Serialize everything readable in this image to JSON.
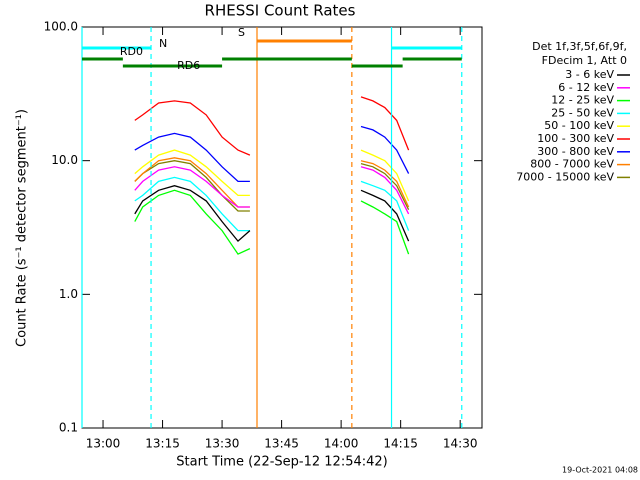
{
  "chart_data": {
    "type": "line",
    "title": "RHESSI Count Rates",
    "x_label": "Start Time (22-Sep-12 12:54:42)",
    "y_label": "Count Rate (s⁻¹ detector segment⁻¹)",
    "legend_header": [
      "Det 1f,3f,5f,6f,9f,",
      "FDecim 1, Att 0"
    ],
    "timestamp": "19-Oct-2021 04:08",
    "log_scale": true,
    "xlim": [
      "12:54:42",
      "14:35:30"
    ],
    "xticks": [
      "13:00",
      "13:15",
      "13:30",
      "13:45",
      "14:00",
      "14:15",
      "14:30"
    ],
    "ylim": [
      0.1,
      100
    ],
    "yticks": [
      {
        "value": 100,
        "label": "100.0"
      },
      {
        "value": 10,
        "label": "10.0"
      },
      {
        "value": 1,
        "label": "1.0"
      },
      0.1
    ],
    "x": [
      "13:08",
      "13:10",
      "13:14",
      "13:18",
      "13:22",
      "13:26",
      "13:30",
      "13:34",
      "13:37",
      "13:50",
      "14:05",
      "14:08",
      "14:11",
      "14:14",
      "14:17"
    ],
    "series": [
      {
        "name": "3 - 6 keV",
        "color": "#000000",
        "values": [
          4,
          5,
          6,
          6.5,
          6,
          5,
          3.5,
          2.5,
          3,
          null,
          6,
          5.5,
          5,
          4,
          2.5
        ]
      },
      {
        "name": "6 - 12 keV",
        "color": "#ff00ff",
        "values": [
          6,
          7,
          8.5,
          9,
          8.5,
          7,
          5.5,
          4.5,
          4.5,
          null,
          9,
          8.5,
          7.5,
          6,
          4
        ]
      },
      {
        "name": "12 - 25 keV",
        "color": "#00ff00",
        "values": [
          3.5,
          4.5,
          5.5,
          6,
          5.5,
          4,
          3,
          2,
          2.2,
          null,
          5,
          4.5,
          4,
          3.5,
          2
        ]
      },
      {
        "name": "25 - 50 keV",
        "color": "#00ffff",
        "values": [
          5,
          5.5,
          7,
          7.5,
          7,
          5.5,
          4,
          3,
          3,
          null,
          7,
          6.5,
          6,
          5,
          3
        ]
      },
      {
        "name": "50 - 100 keV",
        "color": "#ffff00",
        "values": [
          8,
          9,
          11,
          12,
          11,
          9,
          7,
          5.5,
          5.5,
          null,
          12,
          11,
          10,
          8,
          5
        ]
      },
      {
        "name": "100 - 300 keV",
        "color": "#ff0000",
        "values": [
          20,
          22,
          27,
          28,
          27,
          22,
          15,
          12,
          11,
          null,
          30,
          28,
          25,
          20,
          12
        ]
      },
      {
        "name": "300 - 800 keV",
        "color": "#0000ff",
        "values": [
          12,
          13,
          15,
          16,
          15,
          12,
          9,
          7,
          7,
          null,
          18,
          17,
          15,
          12,
          8
        ]
      },
      {
        "name": "800 - 7000 keV",
        "color": "#ff8000",
        "values": [
          7,
          8,
          10,
          10.5,
          10,
          8,
          6,
          4.5,
          4.5,
          null,
          10,
          9.5,
          8.5,
          7,
          4.5
        ]
      },
      {
        "name": "7000 - 15000 keV",
        "color": "#808000",
        "values": [
          7,
          8,
          9.5,
          10,
          9.5,
          7.5,
          5.5,
          4.2,
          4.2,
          null,
          9.5,
          9,
          8,
          6.5,
          4.3
        ]
      }
    ],
    "vlines": [
      {
        "x": "12:54:42",
        "color": "#00ffff",
        "dashed": false
      },
      {
        "x": "13:12:06",
        "color": "#00ffff",
        "dashed": true
      },
      {
        "x": "13:38:48",
        "color": "#ff8000",
        "dashed": false
      },
      {
        "x": "14:02:42",
        "color": "#ff8000",
        "dashed": true
      },
      {
        "x": "14:12:42",
        "color": "#00ffff",
        "dashed": false
      },
      {
        "x": "14:30:24",
        "color": "#00ffff",
        "dashed": true
      }
    ],
    "flags": [
      {
        "name": "S",
        "color": "#ff8000",
        "segments": [
          [
            "13:38:48",
            "14:02:42"
          ]
        ]
      },
      {
        "name": "N",
        "color": "#00ffff",
        "segments": [
          [
            "12:54:42",
            "13:12:06"
          ],
          [
            "14:12:42",
            "14:30:24"
          ]
        ]
      },
      {
        "name": "RD0",
        "color": "#008000",
        "segments": [
          [
            "12:54:42",
            "13:05:00"
          ],
          [
            "13:30:00",
            "14:02:42"
          ],
          [
            "14:15:30",
            "14:30:24"
          ]
        ]
      },
      {
        "name": "RD6",
        "color": "#008000",
        "segments": [
          [
            "13:05:00",
            "13:30:00"
          ],
          [
            "14:02:42",
            "14:15:30"
          ]
        ]
      }
    ]
  }
}
